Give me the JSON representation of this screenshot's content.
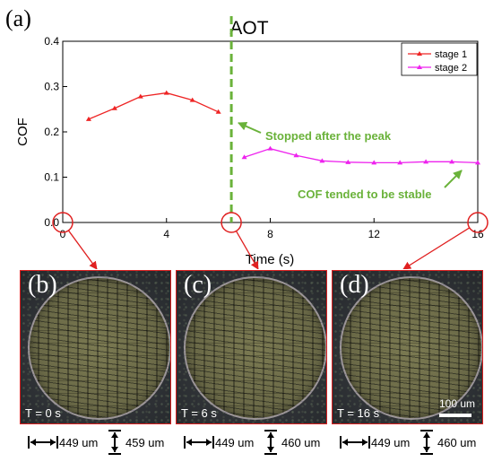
{
  "panel_a_label": "(a)",
  "chart_data": {
    "type": "line",
    "title": "AOT",
    "xlabel": "Time (s)",
    "ylabel": "COF",
    "xlim": [
      0,
      16
    ],
    "ylim": [
      0.0,
      0.4
    ],
    "x_ticks": [
      0,
      4,
      8,
      12,
      16
    ],
    "y_ticks": [
      0.0,
      0.1,
      0.2,
      0.3,
      0.4
    ],
    "x_tick_labels": [
      "0",
      "4",
      "8",
      "12",
      "16"
    ],
    "y_tick_labels": [
      "0.0",
      "0.1",
      "0.2",
      "0.3",
      "0.4"
    ],
    "legend_position": "top-right",
    "grid": false,
    "series": [
      {
        "name": "stage 1",
        "color": "#ee2424",
        "marker": "triangle",
        "x": [
          1,
          2,
          3,
          4,
          5,
          6
        ],
        "y": [
          0.228,
          0.252,
          0.278,
          0.286,
          0.27,
          0.244
        ]
      },
      {
        "name": "stage 2",
        "color": "#ee22ee",
        "marker": "triangle",
        "x": [
          7,
          8,
          9,
          10,
          11,
          12,
          13,
          14,
          15,
          16
        ],
        "y": [
          0.144,
          0.163,
          0.148,
          0.136,
          0.133,
          0.132,
          0.132,
          0.134,
          0.134,
          0.132
        ]
      }
    ],
    "vline": {
      "x": 6.5,
      "color": "#6ab23a",
      "style": "dashed"
    },
    "annotations": [
      {
        "text": "Stopped after the peak",
        "color": "#6ab23a"
      },
      {
        "text": "COF tended to be stable",
        "color": "#6ab23a"
      }
    ],
    "highlight_times": [
      0,
      6.5,
      16
    ]
  },
  "panels": [
    {
      "label": "(b)",
      "time": "T = 0 s",
      "width": "449 um",
      "height": "459 um"
    },
    {
      "label": "(c)",
      "time": "T = 6 s",
      "width": "449 um",
      "height": "460 um"
    },
    {
      "label": "(d)",
      "time": "T = 16 s",
      "width": "449 um",
      "height": "460 um",
      "scale": "100 um"
    }
  ]
}
